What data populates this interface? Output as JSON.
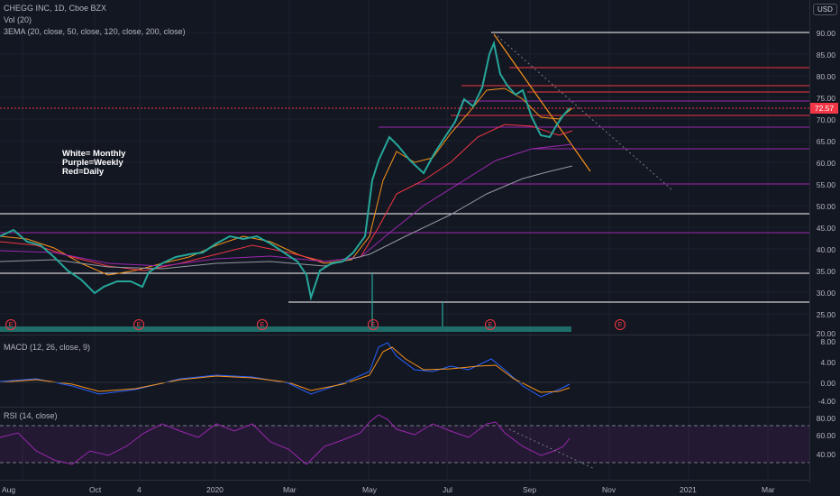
{
  "header": {
    "symbol_line": "CHEGG INC, 1D, Cboe BZX",
    "volume_label": "Vol (20)",
    "ema_label": "3EMA (20, close, 50, close, 120, close, 200, close)",
    "currency": "USD"
  },
  "annotation": {
    "line1": "White= Monthly",
    "line2": "Purple=Weekly",
    "line3": "Red=Daily"
  },
  "last_price": "72.57",
  "earnings_marker": "E",
  "price_axis": [
    "90.00",
    "85.00",
    "80.00",
    "75.00",
    "70.00",
    "65.00",
    "60.00",
    "55.00",
    "50.00",
    "45.00",
    "40.00",
    "35.00",
    "30.00",
    "25.00",
    "20.00"
  ],
  "macd": {
    "label": "MACD (12, 26, close, 9)",
    "axis": [
      "8.00",
      "4.00",
      "0.00",
      "-4.00"
    ]
  },
  "rsi": {
    "label": "RSI (14, close)",
    "axis": [
      "80.00",
      "60.00",
      "40.00"
    ]
  },
  "time_axis": [
    "Aug",
    "Oct",
    "4",
    "2020",
    "Mar",
    "May",
    "Jul",
    "Sep",
    "Nov",
    "2021",
    "Mar"
  ],
  "colors": {
    "background": "#131722",
    "up": "#26a69a",
    "down": "#ef5350",
    "monthly": "#ffffff",
    "weekly": "#9c27b0",
    "daily": "#f23645",
    "trend": "#f7931a",
    "rsi": "#9c27b0"
  }
}
